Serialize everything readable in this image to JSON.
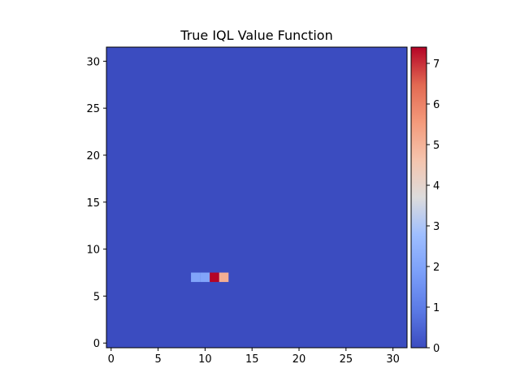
{
  "chart_data": {
    "type": "heatmap",
    "title": "True IQL Value Function",
    "xlabel": "",
    "ylabel": "",
    "grid_size": 32,
    "background_value": 0,
    "cells": [
      {
        "x": 9,
        "y": 7,
        "value": 2.0
      },
      {
        "x": 10,
        "y": 7,
        "value": 2.0
      },
      {
        "x": 11,
        "y": 7,
        "value": 7.4
      },
      {
        "x": 12,
        "y": 7,
        "value": 5.1
      }
    ],
    "xlim": [
      -0.5,
      31.5
    ],
    "ylim": [
      -0.5,
      31.5
    ],
    "x_ticks": [
      0,
      5,
      10,
      15,
      20,
      25,
      30
    ],
    "y_ticks": [
      0,
      5,
      10,
      15,
      20,
      25,
      30
    ],
    "colormap": "coolwarm",
    "colorbar": {
      "min": 0,
      "max": 7.4,
      "ticks": [
        0,
        1,
        2,
        3,
        4,
        5,
        6,
        7
      ]
    },
    "grid": false
  }
}
